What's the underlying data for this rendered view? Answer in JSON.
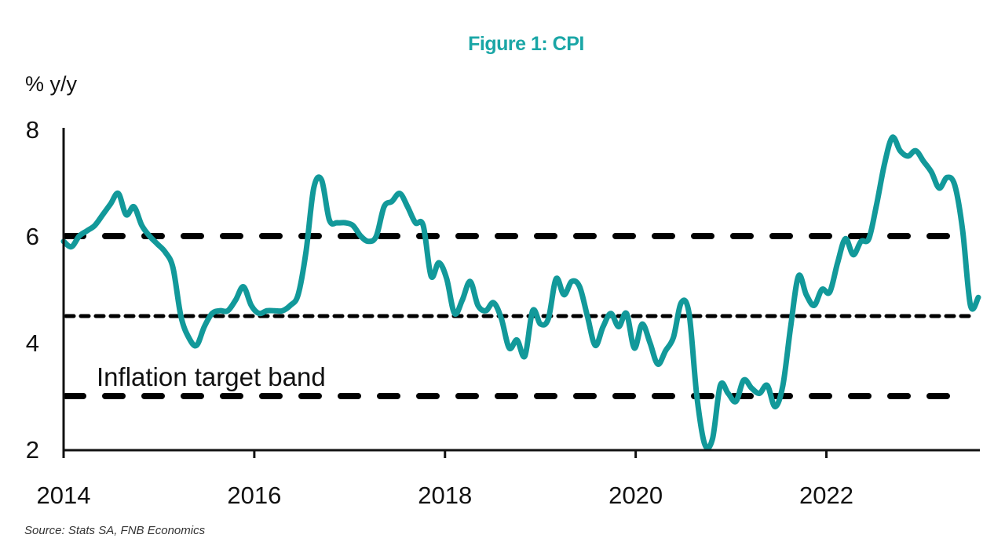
{
  "chart_data": {
    "type": "line",
    "title": "Figure 1: CPI",
    "ylabel": "% y/y",
    "xlabel": "",
    "source": "Source: Stats SA, FNB Economics",
    "ylim": [
      2,
      8
    ],
    "yticks": [
      2,
      4,
      6,
      8
    ],
    "xlim": [
      "2014-01",
      "2023-08"
    ],
    "xticks": [
      "2014",
      "2016",
      "2018",
      "2020",
      "2022"
    ],
    "grid": false,
    "legend": "none",
    "annotation": "Inflation target band",
    "colors": {
      "series": "#12999a",
      "reference": "#000000",
      "title": "#1aa6a6"
    },
    "reference_lines": [
      {
        "name": "target-upper",
        "value": 6,
        "style": "long-dash"
      },
      {
        "name": "target-midpoint",
        "value": 4.5,
        "style": "short-dash"
      },
      {
        "name": "target-lower",
        "value": 3,
        "style": "long-dash"
      }
    ],
    "series": [
      {
        "name": "CPI",
        "start": "2014-01",
        "frequency": "monthly",
        "values": [
          5.9,
          5.8,
          6.0,
          6.1,
          6.2,
          6.4,
          6.6,
          6.8,
          6.4,
          6.55,
          6.2,
          6.0,
          5.85,
          5.7,
          5.4,
          4.5,
          4.1,
          3.95,
          4.3,
          4.55,
          4.6,
          4.6,
          4.8,
          5.05,
          4.7,
          4.55,
          4.6,
          4.6,
          4.6,
          4.7,
          4.9,
          5.7,
          6.9,
          7.05,
          6.3,
          6.25,
          6.25,
          6.2,
          6.0,
          5.9,
          6.0,
          6.55,
          6.65,
          6.8,
          6.55,
          6.25,
          6.2,
          5.25,
          5.5,
          5.2,
          4.55,
          4.8,
          5.15,
          4.7,
          4.6,
          4.75,
          4.45,
          3.9,
          4.05,
          3.75,
          4.6,
          4.35,
          4.45,
          5.2,
          4.9,
          5.15,
          5.05,
          4.5,
          3.95,
          4.3,
          4.55,
          4.3,
          4.55,
          3.9,
          4.35,
          4.0,
          3.6,
          3.85,
          4.1,
          4.75,
          4.55,
          3.0,
          2.1,
          2.2,
          3.2,
          3.05,
          2.9,
          3.3,
          3.15,
          3.05,
          3.2,
          2.8,
          3.2,
          4.3,
          5.25,
          4.9,
          4.7,
          5.0,
          4.95,
          5.5,
          5.95,
          5.65,
          5.9,
          5.95,
          6.6,
          7.35,
          7.85,
          7.6,
          7.5,
          7.6,
          7.4,
          7.2,
          6.9,
          7.1,
          6.95,
          6.1,
          4.7,
          4.85
        ]
      }
    ]
  }
}
